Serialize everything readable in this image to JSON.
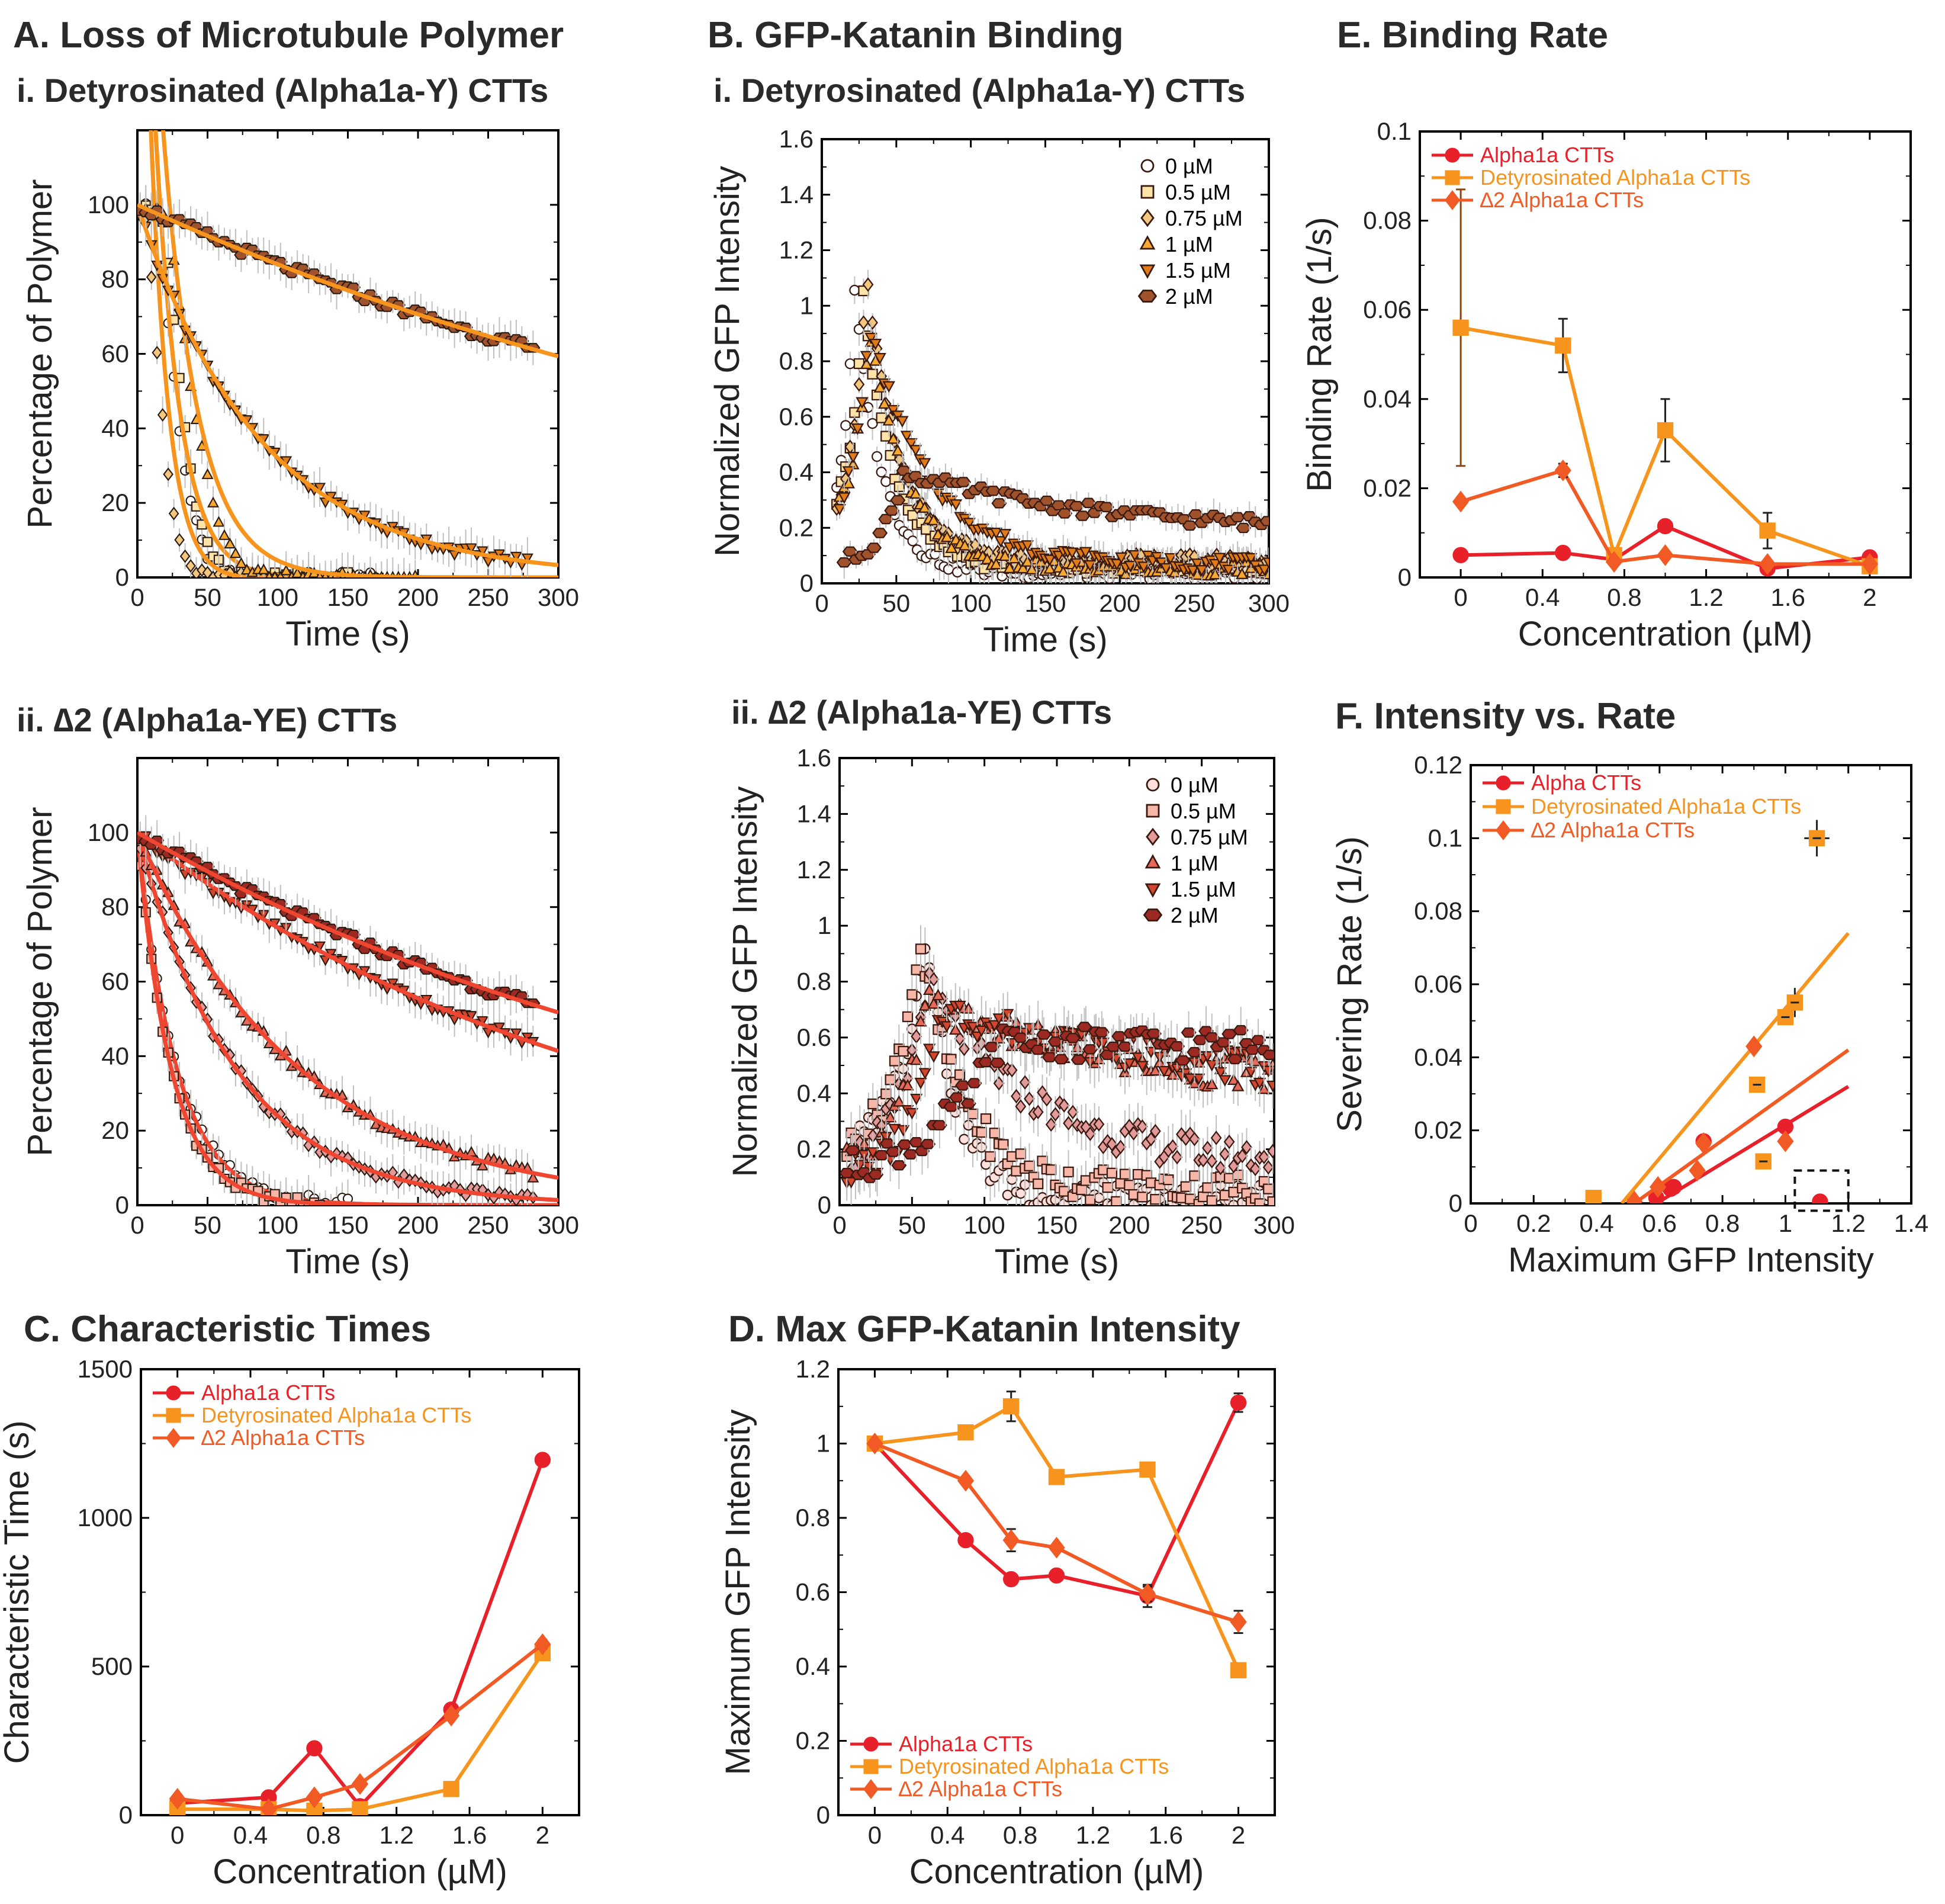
{
  "panel_titles": {
    "A": "A. Loss of Microtubule Polymer",
    "Ai": "i. Detyrosinated (Alpha1a-Y) CTTs",
    "Aii": "ii. ∆2 (Alpha1a-YE) CTTs",
    "B": "B. GFP-Katanin Binding",
    "Bi": "i. Detyrosinated (Alpha1a-Y) CTTs",
    "Bii": "ii. ∆2 (Alpha1a-YE) CTTs",
    "C": "C. Characteristic Times",
    "D": "D. Max GFP-Katanin Intensity",
    "E": "E. Binding Rate",
    "F": "F. Intensity vs. Rate"
  },
  "colors": {
    "alpha": "#e8202a",
    "detyr": "#f7941d",
    "delta2": "#f15a24",
    "fit_orange": "#f7941d",
    "fit_red": "#ef4631",
    "errorbar_light": "#c0c0c0",
    "errorbar_brown": "#8b4513"
  },
  "chart_data": [
    {
      "id": "Ai",
      "type": "scatter",
      "title": "i. Detyrosinated (Alpha1a-Y) CTTs",
      "xlabel": "Time (s)",
      "ylabel": "Percentage of Polymer",
      "xlim": [
        0,
        300
      ],
      "ylim": [
        0,
        120
      ],
      "xticks": [
        0,
        50,
        100,
        150,
        200,
        250,
        300
      ],
      "yticks": [
        0,
        20,
        40,
        60,
        80,
        100
      ],
      "series": [
        {
          "name": "0 µM",
          "marker": "circle",
          "fill": "#ffffff",
          "t_start": 2,
          "t_end": 170,
          "dt": 4,
          "kind": "comp",
          "lag": 12,
          "tau": 20
        },
        {
          "name": "0.5 µM",
          "marker": "square",
          "fill": "#fde3a7",
          "t_start": 2,
          "t_end": 150,
          "dt": 4,
          "kind": "comp",
          "lag": 16,
          "tau": 20
        },
        {
          "name": "0.75 µM",
          "marker": "diamond",
          "fill": "#f3c77e",
          "t_start": 2,
          "t_end": 100,
          "dt": 4,
          "kind": "comp",
          "lag": 5,
          "tau": 15
        },
        {
          "name": "1 µM",
          "marker": "triangle",
          "fill": "#f7a830",
          "t_start": 2,
          "t_end": 200,
          "dt": 4,
          "kind": "comp",
          "lag": 18,
          "tau": 28
        },
        {
          "name": "1.5 µM",
          "marker": "tridown",
          "fill": "#e07b1a",
          "t_start": 2,
          "t_end": 280,
          "dt": 4,
          "kind": "exp",
          "tau": 88
        },
        {
          "name": "2 µM",
          "marker": "hexagon",
          "fill": "#a0522d",
          "t_start": 2,
          "t_end": 282,
          "dt": 4,
          "kind": "exp",
          "tau": 575
        }
      ],
      "fit_color": "#f7941d"
    },
    {
      "id": "Aii",
      "type": "scatter",
      "title": "ii. ∆2 (Alpha1a-YE) CTTs",
      "xlabel": "Time (s)",
      "ylabel": "Percentage of Polymer",
      "xlim": [
        0,
        300
      ],
      "ylim": [
        0,
        120
      ],
      "xticks": [
        0,
        50,
        100,
        150,
        200,
        250,
        300
      ],
      "yticks": [
        0,
        20,
        40,
        60,
        80,
        100
      ],
      "series": [
        {
          "name": "0 µM",
          "marker": "circle",
          "fill": "#ffffff",
          "t_start": 2,
          "t_end": 150,
          "dt": 4,
          "kind": "exp",
          "tau": 28
        },
        {
          "name": "0.5 µM",
          "marker": "square",
          "fill": "#f7b6a8",
          "t_start": 2,
          "t_end": 130,
          "dt": 4,
          "kind": "exp",
          "tau": 24
        },
        {
          "name": "0.75 µM",
          "marker": "diamond",
          "fill": "#e39a9a",
          "t_start": 2,
          "t_end": 282,
          "dt": 4,
          "kind": "exp",
          "tau": 70
        },
        {
          "name": "1 µM",
          "marker": "triangle",
          "fill": "#e56a5a",
          "t_start": 2,
          "t_end": 282,
          "dt": 4,
          "kind": "exp",
          "tau": 115
        },
        {
          "name": "1.5 µM",
          "marker": "tridown",
          "fill": "#d2452f",
          "t_start": 2,
          "t_end": 282,
          "dt": 4,
          "kind": "exp",
          "tau": 340
        },
        {
          "name": "2 µM",
          "marker": "hexagon",
          "fill": "#9c2a22",
          "t_start": 2,
          "t_end": 282,
          "dt": 4,
          "kind": "exp",
          "tau": 455
        }
      ],
      "fit_color": "#ef4631"
    },
    {
      "id": "Bi",
      "type": "scatter",
      "title": "i. Detyrosinated (Alpha1a-Y) CTTs",
      "xlabel": "Time (s)",
      "ylabel": "Normalized GFP Intensity",
      "xlim": [
        0,
        300
      ],
      "ylim": [
        0,
        1.6
      ],
      "xticks": [
        0,
        50,
        100,
        150,
        200,
        250,
        300
      ],
      "yticks": [
        0,
        0.2,
        0.4,
        0.6,
        0.8,
        1,
        1.2,
        1.4,
        1.6
      ],
      "legend": [
        "0 µM",
        "0.5 µM",
        "0.75 µM",
        "1 µM",
        "1.5 µM",
        "2 µM"
      ],
      "series": [
        {
          "name": "0 µM",
          "marker": "circle",
          "fill": "#ffffff",
          "t_start": 10,
          "t_end": 300,
          "dt": 3,
          "peak_t": 22,
          "peak": 1.05,
          "tail": 0.04,
          "rise": 8,
          "decay": 18
        },
        {
          "name": "0.5 µM",
          "marker": "square",
          "fill": "#fde3a7",
          "t_start": 10,
          "t_end": 300,
          "dt": 3,
          "peak_t": 28,
          "peak": 1.03,
          "tail": 0.06,
          "rise": 10,
          "decay": 20
        },
        {
          "name": "0.75 µM",
          "marker": "diamond",
          "fill": "#f3c77e",
          "t_start": 10,
          "t_end": 300,
          "dt": 3,
          "peak_t": 30,
          "peak": 1.1,
          "tail": 0.08,
          "rise": 10,
          "decay": 22
        },
        {
          "name": "1 µM",
          "marker": "triangle",
          "fill": "#f7a830",
          "t_start": 12,
          "t_end": 300,
          "dt": 3,
          "peak_t": 32,
          "peak": 0.92,
          "tail": 0.05,
          "rise": 12,
          "decay": 25
        },
        {
          "name": "1.5 µM",
          "marker": "tridown",
          "fill": "#e07b1a",
          "t_start": 12,
          "t_end": 300,
          "dt": 3,
          "peak_t": 32,
          "peak": 0.93,
          "tail": 0.07,
          "rise": 12,
          "decay": 40
        },
        {
          "name": "2 µM",
          "marker": "hexagon",
          "fill": "#a0522d",
          "t_start": 15,
          "t_end": 300,
          "dt": 4,
          "peak_t": 55,
          "peak": 0.4,
          "tail": 0.19,
          "rise": 15,
          "decay": 120
        }
      ]
    },
    {
      "id": "Bii",
      "type": "scatter",
      "title": "ii. ∆2 (Alpha1a-YE) CTTs",
      "xlabel": "Time (s)",
      "ylabel": "Normalized GFP Intensity",
      "xlim": [
        0,
        300
      ],
      "ylim": [
        0,
        1.6
      ],
      "xticks": [
        0,
        50,
        100,
        150,
        200,
        250,
        300
      ],
      "yticks": [
        0,
        0.2,
        0.4,
        0.6,
        0.8,
        1,
        1.2,
        1.4,
        1.6
      ],
      "legend": [
        "0 µM",
        "0.5 µM",
        "0.75 µM",
        "1 µM",
        "1.5 µM",
        "2 µM"
      ],
      "series": [
        {
          "name": "0 µM",
          "marker": "circle",
          "fill": "#fde0dc",
          "t_start": 5,
          "t_end": 300,
          "dt": 3,
          "peak_t": 60,
          "peak": 1.0,
          "tail": 0.02,
          "rise": 20,
          "decay": 20
        },
        {
          "name": "0.5 µM",
          "marker": "square",
          "fill": "#f7b6a8",
          "t_start": 5,
          "t_end": 300,
          "dt": 3,
          "peak_t": 55,
          "peak": 0.95,
          "tail": 0.06,
          "rise": 20,
          "decay": 30
        },
        {
          "name": "0.75 µM",
          "marker": "diamond",
          "fill": "#e39a9a",
          "t_start": 5,
          "t_end": 300,
          "dt": 3,
          "peak_t": 60,
          "peak": 0.8,
          "tail": 0.15,
          "rise": 20,
          "decay": 70
        },
        {
          "name": "1 µM",
          "marker": "triangle",
          "fill": "#e56a5a",
          "t_start": 5,
          "t_end": 300,
          "dt": 3,
          "peak_t": 60,
          "peak": 0.72,
          "tail": 0.4,
          "rise": 20,
          "decay": 140
        },
        {
          "name": "1.5 µM",
          "marker": "tridown",
          "fill": "#d2452f",
          "t_start": 5,
          "t_end": 300,
          "dt": 3,
          "peak_t": 70,
          "peak": 0.7,
          "tail": 0.38,
          "rise": 20,
          "decay": 200
        },
        {
          "name": "2 µM",
          "marker": "hexagon",
          "fill": "#9c2a22",
          "t_start": 5,
          "t_end": 300,
          "dt": 4,
          "peak_t": 110,
          "peak": 0.58,
          "tail": 0.55,
          "rise": 45,
          "decay": 900
        }
      ]
    },
    {
      "id": "C",
      "type": "line",
      "title": "C. Characteristic Times",
      "xlabel": "Concentration (µM)",
      "ylabel": "Characteristic Time (s)",
      "xlim": [
        -0.2,
        2.2
      ],
      "ylim": [
        0,
        1500
      ],
      "xticks": [
        0,
        0.4,
        0.8,
        1.2,
        1.6,
        2
      ],
      "yticks": [
        0,
        500,
        1000,
        1500
      ],
      "series": [
        {
          "name": "Alpha1a CTTs",
          "marker": "circle",
          "color": "#e8202a",
          "x": [
            0,
            0.5,
            0.75,
            1,
            1.5,
            2
          ],
          "y": [
            40,
            60,
            225,
            30,
            355,
            1195
          ],
          "err": [
            10,
            10,
            12,
            10,
            12,
            18
          ]
        },
        {
          "name": "Detyrosinated Alpha1a  CTTs",
          "marker": "square",
          "color": "#f7941d",
          "x": [
            0,
            0.5,
            0.75,
            1,
            1.5,
            2
          ],
          "y": [
            20,
            20,
            15,
            20,
            88,
            545
          ],
          "err": [
            5,
            5,
            5,
            5,
            10,
            15
          ]
        },
        {
          "name": "∆2 Alpha1a CTTs",
          "marker": "diamond",
          "color": "#f15a24",
          "x": [
            0,
            0.5,
            0.75,
            1,
            1.5,
            2
          ],
          "y": [
            55,
            20,
            60,
            105,
            335,
            575
          ],
          "err": [
            5,
            5,
            8,
            8,
            12,
            15
          ]
        }
      ]
    },
    {
      "id": "D",
      "type": "line",
      "title": "D. Max GFP-Katanin Intensity",
      "xlabel": "Concentration (µM)",
      "ylabel": "Maximum GFP Intensity",
      "xlim": [
        -0.2,
        2.2
      ],
      "ylim": [
        0,
        1.2
      ],
      "xticks": [
        0,
        0.4,
        0.8,
        1.2,
        1.6,
        2
      ],
      "yticks": [
        0,
        0.2,
        0.4,
        0.6,
        0.8,
        1,
        1.2
      ],
      "series": [
        {
          "name": "Alpha1a CTTs",
          "marker": "circle",
          "color": "#e8202a",
          "x": [
            0,
            0.5,
            0.75,
            1,
            1.5,
            2
          ],
          "y": [
            1.0,
            0.74,
            0.635,
            0.645,
            0.59,
            1.11
          ],
          "err": [
            0.01,
            0.01,
            0.015,
            0.015,
            0.03,
            0.025
          ]
        },
        {
          "name": "Detyrosinated Alpha1a  CTTs",
          "marker": "square",
          "color": "#f7941d",
          "x": [
            0,
            0.5,
            0.75,
            1,
            1.5,
            2
          ],
          "y": [
            1.0,
            1.03,
            1.1,
            0.91,
            0.93,
            0.39
          ],
          "err": [
            0.01,
            0.015,
            0.04,
            0.015,
            0.015,
            0.015
          ]
        },
        {
          "name": "∆2 Alpha1a CTTs",
          "marker": "diamond",
          "color": "#f15a24",
          "x": [
            0,
            0.5,
            0.75,
            1,
            1.5,
            2
          ],
          "y": [
            1.0,
            0.9,
            0.74,
            0.72,
            0.595,
            0.52
          ],
          "err": [
            0.01,
            0.01,
            0.03,
            0.01,
            0.02,
            0.03
          ]
        }
      ]
    },
    {
      "id": "E",
      "type": "line",
      "title": "E. Binding Rate",
      "xlabel": "Concentration (µM)",
      "ylabel": "Binding Rate (1/s)",
      "xlim": [
        -0.2,
        2.2
      ],
      "ylim": [
        0,
        0.1
      ],
      "xticks": [
        0,
        0.4,
        0.8,
        1.2,
        1.6,
        2
      ],
      "yticks": [
        0,
        0.02,
        0.04,
        0.06,
        0.08,
        0.1
      ],
      "series": [
        {
          "name": "Alpha1a CTTs",
          "marker": "circle",
          "color": "#e8202a",
          "x": [
            0,
            0.5,
            0.75,
            1,
            1.5,
            2
          ],
          "y": [
            0.005,
            0.0055,
            0.004,
            0.0115,
            0.002,
            0.0045
          ],
          "err": [
            0.0005,
            0.0005,
            0.0005,
            0.001,
            0.0005,
            0.0005
          ]
        },
        {
          "name": "Detyrosinated Alpha1a  CTTs",
          "marker": "square",
          "color": "#f7941d",
          "x": [
            0,
            0.5,
            0.75,
            1,
            1.5,
            2
          ],
          "y": [
            0.056,
            0.052,
            0.005,
            0.033,
            0.0105,
            0.0025
          ],
          "err": [
            0.031,
            0.006,
            0.001,
            0.007,
            0.004,
            0.0005
          ]
        },
        {
          "name": "∆2 Alpha1a CTTs",
          "marker": "diamond",
          "color": "#f15a24",
          "x": [
            0,
            0.5,
            0.75,
            1,
            1.5,
            2
          ],
          "y": [
            0.017,
            0.024,
            0.0035,
            0.005,
            0.003,
            0.003
          ],
          "err": [
            0.0005,
            0.0015,
            0.0005,
            0.0005,
            0.0005,
            0.0005
          ]
        }
      ]
    },
    {
      "id": "F",
      "type": "scatter",
      "title": "F. Intensity vs. Rate",
      "xlabel": "Maximum GFP Intensity",
      "ylabel": "Severing Rate (1/s)",
      "xlim": [
        0,
        1.4
      ],
      "ylim": [
        0,
        0.12
      ],
      "xticks": [
        0,
        0.2,
        0.4,
        0.6,
        0.8,
        1,
        1.2,
        1.4
      ],
      "yticks": [
        0,
        0.02,
        0.04,
        0.06,
        0.08,
        0.1,
        0.12
      ],
      "series": [
        {
          "name": "Alpha CTTs",
          "marker": "circle",
          "color": "#e8202a",
          "x": [
            0.59,
            0.635,
            0.645,
            0.74,
            1.0,
            1.11
          ],
          "y": [
            0.0015,
            0.004,
            0.0045,
            0.017,
            0.021,
            0.0005
          ],
          "fit": [
            [
              0.59,
              0.0
            ],
            [
              1.2,
              0.032
            ]
          ]
        },
        {
          "name": "Detyrosinated Alpha1a  CTTs",
          "marker": "square",
          "color": "#f7941d",
          "x": [
            0.39,
            0.91,
            0.93,
            1.0,
            1.03,
            1.1
          ],
          "y": [
            0.0015,
            0.0325,
            0.0115,
            0.051,
            0.055,
            0.1
          ],
          "xerr": [
            0.0,
            0.015,
            0.015,
            0.01,
            0.015,
            0.04
          ],
          "yerr": [
            0.0,
            0.001,
            0.001,
            0.002,
            0.004,
            0.005
          ],
          "fit": [
            [
              0.48,
              0.0
            ],
            [
              1.2,
              0.074
            ]
          ]
        },
        {
          "name": "∆2 Alpha1a CTTs",
          "marker": "diamond",
          "color": "#f15a24",
          "x": [
            0.52,
            0.595,
            0.72,
            0.74,
            0.9,
            1.0
          ],
          "y": [
            0.0005,
            0.0045,
            0.009,
            0.0165,
            0.043,
            0.017
          ],
          "fit": [
            [
              0.52,
              0.0
            ],
            [
              1.2,
              0.042
            ]
          ]
        }
      ]
    }
  ]
}
